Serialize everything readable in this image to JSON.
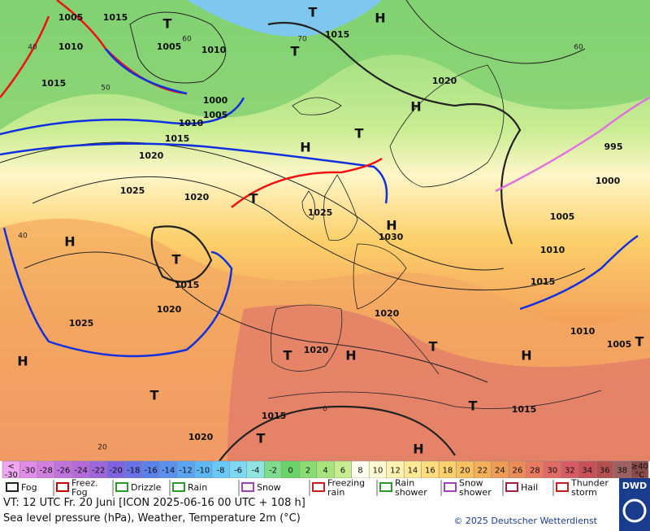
{
  "map": {
    "pressure_labels": [
      1005,
      1015,
      1010,
      1005,
      1010,
      1015,
      1015,
      1020,
      1000,
      1005,
      1010,
      1015,
      1020,
      995,
      1000,
      1025,
      1020,
      1025,
      1005,
      1030,
      1010,
      1015,
      1015,
      1020,
      1020,
      1025,
      1010,
      1020,
      1005,
      1015,
      1015,
      1020
    ],
    "centers": [
      "H",
      "T",
      "T",
      "T",
      "H",
      "H",
      "T",
      "T",
      "H",
      "H",
      "T",
      "T",
      "H",
      "H",
      "T",
      "T",
      "H",
      "T",
      "T",
      "H",
      "T"
    ],
    "temperature_labels": [
      40,
      60,
      50,
      70,
      60,
      40,
      20,
      0
    ]
  },
  "legend": {
    "temperature_scale": {
      "first_label": "<\n-30",
      "values": [
        -30,
        -28,
        -26,
        -24,
        -22,
        -20,
        -18,
        -16,
        -14,
        -12,
        -10,
        -8,
        -6,
        -4,
        -2,
        0,
        2,
        4,
        6,
        8,
        10,
        12,
        14,
        16,
        18,
        20,
        22,
        24,
        26,
        28,
        30,
        32,
        34,
        36,
        38
      ],
      "last_label": "≥40\n°C",
      "colors": [
        "#f0a6f0",
        "#e08ce8",
        "#d27fe0",
        "#c173dc",
        "#b46ad8",
        "#9f66dc",
        "#7e62e0",
        "#6a70e6",
        "#5a80ea",
        "#5a92ee",
        "#5aa4f2",
        "#5eb6f4",
        "#6ac8f6",
        "#7ed8f4",
        "#8ee4e0",
        "#7edc8c",
        "#6ad46a",
        "#88dc72",
        "#a8e47e",
        "#c8ec92",
        "#fffff0",
        "#fffad0",
        "#fff2b0",
        "#ffe896",
        "#ffdc7c",
        "#fcd06a",
        "#f8c060",
        "#f4b058",
        "#f09c56",
        "#ec8c5a",
        "#e87a60",
        "#e06a64",
        "#d85a64",
        "#c85058",
        "#b25050",
        "#9c6060",
        "#8a4a4a"
      ]
    },
    "symbols": [
      "Fog",
      "Freez.\nFog",
      "Drizzle",
      "Rain",
      "Snow",
      "Freezing\nrain",
      "Rain\nshower",
      "Snow\nshower",
      "Hail",
      "Thunder\nstorm"
    ],
    "logo": "DWD"
  },
  "footer": {
    "valid_time": "VT: 12 UTC Fr.  20 Juni [ICON 2025-06-16  00 UTC + 108 h]",
    "description": "Sea level pressure (hPa), Weather, Temperature 2m (°C)",
    "copyright": "© 2025 Deutscher Wetterdienst"
  }
}
